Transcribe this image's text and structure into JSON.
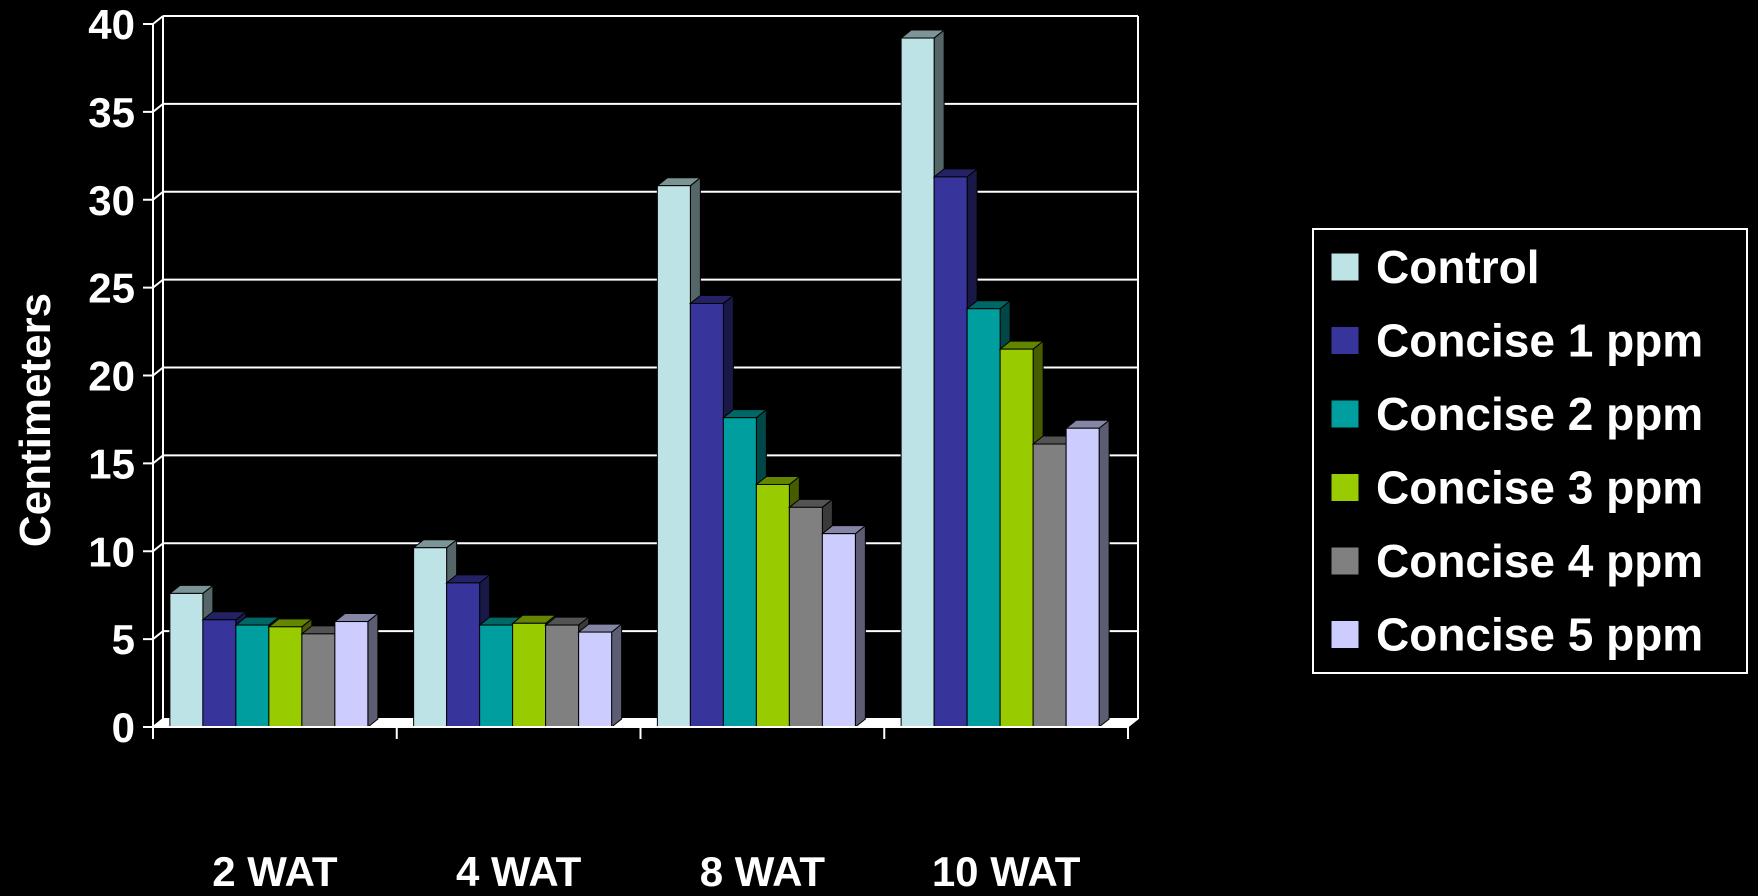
{
  "chart_data": {
    "type": "bar",
    "title": "",
    "xlabel": "",
    "ylabel": "Centimeters",
    "ylim": [
      0,
      40
    ],
    "yticks": [
      0,
      5,
      10,
      15,
      20,
      25,
      30,
      35,
      40
    ],
    "grid": true,
    "legend_position": "right",
    "categories": [
      "2 WAT",
      "4 WAT",
      "8 WAT",
      "10 WAT"
    ],
    "series": [
      {
        "name": "Control",
        "color": "#BDE3E6",
        "values": [
          7.6,
          10.2,
          30.8,
          39.2
        ]
      },
      {
        "name": "Concise 1 ppm",
        "color": "#37359B",
        "values": [
          6.1,
          8.2,
          24.1,
          31.3
        ]
      },
      {
        "name": "Concise 2 ppm",
        "color": "#009E9E",
        "values": [
          5.8,
          5.8,
          17.6,
          23.8
        ]
      },
      {
        "name": "Concise 3 ppm",
        "color": "#99CC00",
        "values": [
          5.7,
          5.9,
          13.8,
          21.5
        ]
      },
      {
        "name": "Concise 4 ppm",
        "color": "#808080",
        "values": [
          5.3,
          5.8,
          12.5,
          16.1
        ]
      },
      {
        "name": "Concise 5 ppm",
        "color": "#CCCCFF",
        "values": [
          6.0,
          5.4,
          11.0,
          17.0
        ]
      }
    ]
  }
}
